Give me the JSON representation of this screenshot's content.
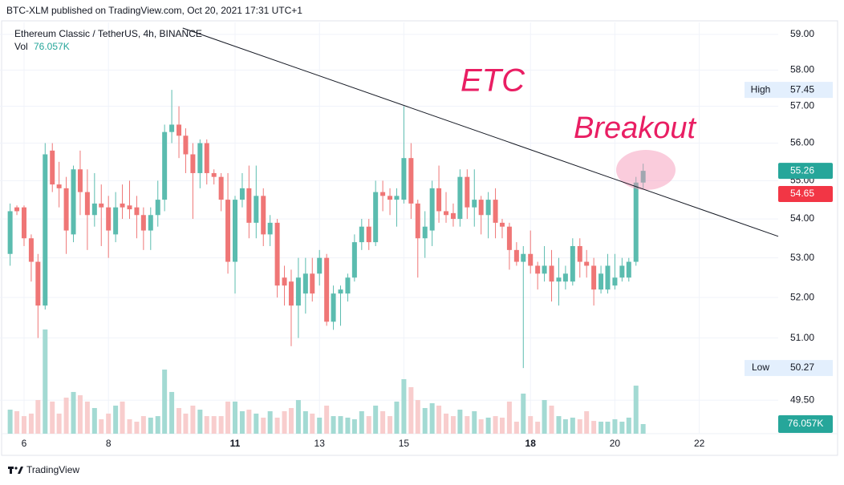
{
  "chart_data": {
    "type": "candlestick",
    "publisher": "BTC-XLM published on TradingView.com, Oct 20, 2021 17:31 UTC+1",
    "title": "Ethereum Classic / TetherUS, 4h, BINANCE",
    "volume_name": "Vol",
    "volume_label": "76.057K",
    "brand": "TradingView",
    "annotations": [
      "ETC",
      "Breakout"
    ],
    "log_scale": true,
    "grid": true,
    "up_color": "#5bbcaf",
    "down_color": "#ef7676",
    "volume_up_color": "#a3dad3",
    "volume_down_color": "#f8cdcd",
    "x": [
      5.67,
      5.83,
      6,
      6.17,
      6.33,
      6.5,
      6.67,
      6.83,
      7,
      7.17,
      7.33,
      7.5,
      7.67,
      7.83,
      8,
      8.17,
      8.33,
      8.5,
      8.67,
      8.83,
      9,
      9.17,
      9.33,
      9.5,
      9.67,
      9.83,
      10,
      10.17,
      10.33,
      10.5,
      10.67,
      10.83,
      11,
      11.17,
      11.33,
      11.5,
      11.67,
      11.83,
      12,
      12.17,
      12.33,
      12.5,
      12.67,
      12.83,
      13,
      13.17,
      13.33,
      13.5,
      13.67,
      13.83,
      14,
      14.17,
      14.33,
      14.5,
      14.67,
      14.83,
      15,
      15.17,
      15.33,
      15.5,
      15.67,
      15.83,
      16,
      16.17,
      16.33,
      16.5,
      16.67,
      16.83,
      17,
      17.17,
      17.33,
      17.5,
      17.67,
      17.83,
      18,
      18.17,
      18.33,
      18.5,
      18.67,
      18.83,
      19,
      19.17,
      19.33,
      19.5,
      19.67,
      19.83,
      20,
      20.17,
      20.33,
      20.5,
      20.67
    ],
    "open": [
      53.1,
      54.3,
      54.3,
      53.5,
      52.9,
      51.8,
      55.8,
      54.9,
      54.8,
      53.6,
      55.3,
      54.7,
      54.1,
      54.4,
      54.3,
      53.6,
      54.4,
      54.35,
      54.3,
      54.1,
      53.7,
      54.1,
      54.5,
      56.3,
      56.5,
      56.2,
      55.7,
      55.2,
      56.0,
      55.2,
      55.1,
      54.5,
      52.9,
      54.5,
      54.8,
      53.9,
      54.6,
      53.6,
      53.9,
      52.5,
      52.4,
      51.8,
      52.1,
      52.6,
      52.6,
      53.0,
      51.4,
      52.1,
      52.1,
      52.5,
      53.4,
      53.8,
      53.4,
      54.7,
      54.6,
      54.5,
      54.5,
      55.6,
      54.4,
      53.5,
      53.7,
      54.8,
      54.2,
      54.15,
      54.0,
      55.1,
      54.3,
      54.5,
      54.1,
      54.5,
      53.9,
      53.8,
      53.2,
      52.9,
      53.1,
      52.8,
      52.6,
      52.8,
      52.4,
      52.4,
      52.4,
      53.3,
      52.9,
      52.8,
      52.2,
      52.2,
      52.3,
      52.5,
      52.5,
      52.9,
      54.95
    ],
    "high": [
      54.4,
      54.35,
      54.35,
      53.6,
      53.1,
      56.0,
      56.0,
      55.5,
      55.1,
      55.4,
      55.8,
      55.3,
      55.2,
      54.9,
      54.6,
      54.7,
      54.9,
      55.0,
      54.6,
      54.3,
      54.3,
      55.0,
      56.5,
      57.45,
      57.0,
      56.4,
      56.0,
      56.1,
      56.1,
      55.3,
      55.2,
      55.2,
      54.6,
      55.2,
      55.4,
      55.4,
      54.8,
      54.1,
      54.0,
      52.8,
      52.7,
      53.0,
      53.0,
      53.0,
      53.2,
      53.1,
      52.3,
      52.3,
      52.6,
      53.6,
      54.0,
      54.0,
      55.0,
      55.0,
      54.8,
      54.8,
      57.0,
      56.0,
      54.5,
      54.2,
      55.0,
      55.4,
      54.7,
      54.4,
      55.3,
      55.3,
      55.3,
      54.6,
      54.7,
      54.8,
      54.0,
      53.9,
      53.4,
      53.3,
      53.7,
      52.9,
      53.3,
      53.2,
      53.0,
      52.8,
      53.5,
      53.5,
      53.2,
      53.0,
      52.8,
      53.1,
      53.1,
      53.0,
      53.0,
      55.1,
      55.45
    ],
    "low": [
      52.8,
      54.1,
      53.3,
      52.4,
      51.0,
      51.7,
      54.7,
      54.3,
      53.1,
      53.4,
      54.1,
      53.2,
      53.8,
      53.3,
      53.0,
      53.4,
      54.0,
      54.0,
      53.5,
      53.2,
      53.2,
      53.8,
      54.2,
      56.0,
      55.6,
      55.2,
      54.0,
      54.8,
      54.9,
      54.9,
      54.2,
      52.6,
      52.1,
      54.3,
      53.5,
      53.5,
      53.3,
      53.3,
      52.0,
      51.8,
      50.8,
      51.0,
      51.6,
      51.9,
      52.3,
      51.3,
      51.2,
      51.3,
      51.9,
      52.4,
      53.2,
      53.2,
      53.3,
      54.2,
      54.1,
      53.8,
      54.4,
      54.0,
      52.5,
      53.0,
      53.3,
      53.9,
      53.9,
      53.8,
      53.8,
      54.0,
      53.8,
      53.6,
      53.5,
      53.5,
      53.5,
      52.7,
      52.8,
      50.27,
      52.6,
      52.2,
      52.4,
      51.9,
      51.8,
      52.2,
      52.3,
      52.5,
      52.5,
      51.8,
      52.1,
      52.1,
      52.2,
      52.4,
      52.4,
      52.8,
      54.8
    ],
    "close": [
      54.2,
      54.2,
      53.5,
      52.9,
      51.8,
      55.7,
      54.9,
      54.8,
      53.7,
      55.3,
      54.7,
      54.1,
      54.4,
      54.3,
      53.7,
      54.3,
      54.3,
      54.25,
      54.1,
      53.7,
      54.1,
      54.5,
      56.3,
      56.5,
      56.2,
      55.7,
      55.2,
      56.0,
      55.2,
      55.1,
      54.5,
      52.9,
      54.5,
      54.8,
      53.9,
      54.6,
      53.6,
      53.9,
      52.3,
      52.3,
      51.8,
      52.5,
      52.6,
      52.1,
      53.0,
      51.4,
      52.1,
      52.2,
      52.5,
      53.4,
      53.8,
      53.4,
      54.7,
      54.6,
      54.5,
      54.6,
      55.6,
      54.4,
      53.5,
      53.8,
      54.8,
      54.2,
      54.1,
      54.0,
      55.1,
      54.3,
      54.5,
      54.1,
      54.5,
      53.9,
      53.8,
      53.2,
      52.9,
      53.1,
      52.8,
      52.6,
      52.8,
      52.4,
      52.5,
      52.6,
      53.3,
      52.9,
      52.8,
      52.2,
      52.6,
      52.8,
      52.5,
      52.8,
      52.9,
      54.95,
      55.26
    ],
    "volume": [
      190,
      178,
      139,
      159,
      266,
      824,
      254,
      159,
      285,
      330,
      304,
      254,
      203,
      114,
      159,
      222,
      254,
      114,
      95,
      139,
      127,
      139,
      507,
      330,
      203,
      159,
      222,
      190,
      139,
      139,
      139,
      254,
      254,
      178,
      190,
      159,
      127,
      178,
      127,
      178,
      203,
      266,
      178,
      159,
      127,
      222,
      139,
      139,
      127,
      114,
      178,
      139,
      222,
      178,
      139,
      254,
      431,
      368,
      266,
      203,
      241,
      222,
      159,
      139,
      190,
      139,
      178,
      114,
      127,
      139,
      127,
      254,
      95,
      317,
      139,
      95,
      266,
      222,
      139,
      114,
      127,
      114,
      178,
      101,
      95,
      95,
      114,
      95,
      127,
      380,
      76.057
    ],
    "xlim": [
      5.43,
      23.87
    ],
    "xticks": [
      6,
      8,
      11,
      13,
      15,
      18,
      20,
      22
    ],
    "xtick_bold": [
      false,
      false,
      true,
      false,
      false,
      true,
      false,
      false
    ],
    "ylim": [
      48.71,
      59.34
    ],
    "yticks": [
      {
        "value": 59,
        "label": "59.00"
      },
      {
        "value": 58,
        "label": "58.00"
      },
      {
        "value": 57,
        "label": "57.00"
      },
      {
        "value": 56,
        "label": "56.00"
      },
      {
        "value": 55,
        "label": "55.00"
      },
      {
        "value": 54,
        "label": "54.00"
      },
      {
        "value": 53,
        "label": "53.00"
      },
      {
        "value": 52,
        "label": "52.00"
      },
      {
        "value": 51,
        "label": "51.00"
      },
      {
        "value": 49.5,
        "label": "49.50"
      }
    ],
    "vlim": [
      0,
      3252
    ],
    "trendline": {
      "x": [
        9.76,
        23.87
      ],
      "y": [
        59.18,
        53.55
      ],
      "color": "#131722"
    },
    "extremes": [
      {
        "label": "High",
        "value": 57.45
      },
      {
        "label": "Low",
        "value": 50.27
      }
    ],
    "price_tags": [
      {
        "value": 55.26,
        "color": "#26a69a"
      },
      {
        "value": 54.65,
        "color": "#f23645"
      }
    ],
    "volume_tag_color": "#26a69a"
  }
}
